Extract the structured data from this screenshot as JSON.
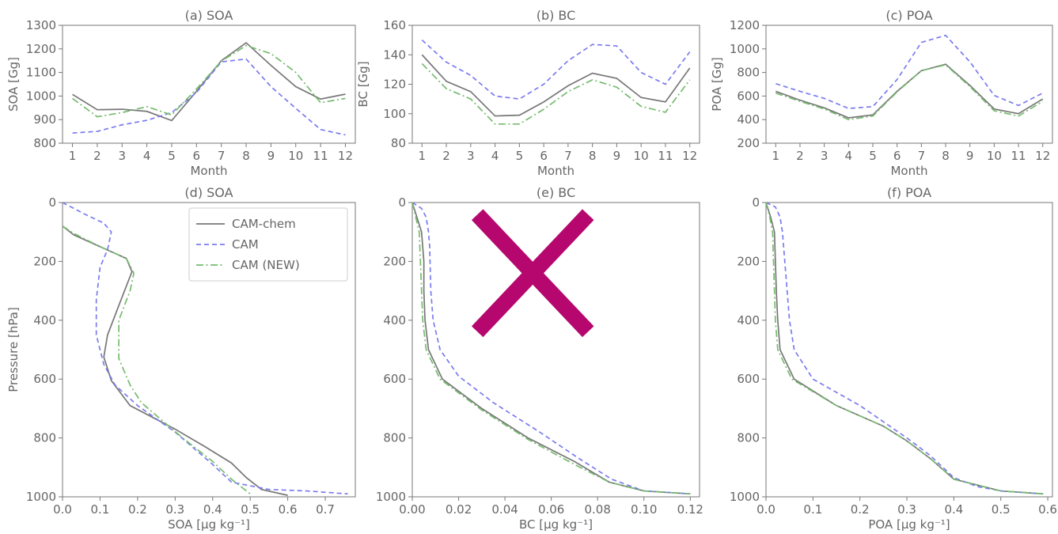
{
  "chart_data": [
    {
      "panel": "a",
      "type": "line",
      "title": "(a) SOA",
      "xlabel": "Month",
      "ylabel": "SOA [Gg]",
      "xlim": [
        0.6,
        12.4
      ],
      "ylim": [
        800,
        1300
      ],
      "xticks": [
        1,
        2,
        3,
        4,
        5,
        6,
        7,
        8,
        9,
        10,
        11,
        12
      ],
      "yticks": [
        800,
        900,
        1000,
        1100,
        1200,
        1300
      ],
      "series": [
        {
          "key": "chem",
          "x": [
            1,
            2,
            3,
            4,
            5,
            6,
            7,
            8,
            9,
            10,
            11,
            12
          ],
          "y": [
            1007,
            942,
            944,
            935,
            896,
            1020,
            1150,
            1226,
            1130,
            1040,
            987,
            1008
          ]
        },
        {
          "key": "cam",
          "x": [
            1,
            2,
            3,
            4,
            5,
            6,
            7,
            8,
            9,
            10,
            11,
            12
          ],
          "y": [
            843,
            850,
            878,
            897,
            930,
            1015,
            1145,
            1157,
            1040,
            948,
            858,
            835
          ]
        },
        {
          "key": "new",
          "x": [
            1,
            2,
            3,
            4,
            5,
            6,
            7,
            8,
            9,
            10,
            11,
            12
          ],
          "y": [
            990,
            912,
            930,
            955,
            920,
            1030,
            1148,
            1214,
            1180,
            1100,
            972,
            990
          ]
        }
      ]
    },
    {
      "panel": "b",
      "type": "line",
      "title": "(b) BC",
      "xlabel": "Month",
      "ylabel": "BC [Gg]",
      "xlim": [
        0.6,
        12.4
      ],
      "ylim": [
        80,
        160
      ],
      "xticks": [
        1,
        2,
        3,
        4,
        5,
        6,
        7,
        8,
        9,
        10,
        11,
        12
      ],
      "yticks": [
        80,
        100,
        120,
        140,
        160
      ],
      "series": [
        {
          "key": "chem",
          "x": [
            1,
            2,
            3,
            4,
            5,
            6,
            7,
            8,
            9,
            10,
            11,
            12
          ],
          "y": [
            140,
            122,
            115,
            98.5,
            99,
            108,
            119,
            127.5,
            124,
            111,
            108,
            131
          ]
        },
        {
          "key": "cam",
          "x": [
            1,
            2,
            3,
            4,
            5,
            6,
            7,
            8,
            9,
            10,
            11,
            12
          ],
          "y": [
            150,
            135,
            126,
            112,
            110,
            120,
            136,
            147,
            146,
            128,
            120,
            142
          ]
        },
        {
          "key": "new",
          "x": [
            1,
            2,
            3,
            4,
            5,
            6,
            7,
            8,
            9,
            10,
            11,
            12
          ],
          "y": [
            134,
            117,
            110,
            93,
            93,
            103,
            115,
            123,
            118,
            105,
            101,
            123
          ]
        }
      ]
    },
    {
      "panel": "c",
      "type": "line",
      "title": "(c) POA",
      "xlabel": "Month",
      "ylabel": "POA [Gg]",
      "xlim": [
        0.6,
        12.4
      ],
      "ylim": [
        200,
        1200
      ],
      "xticks": [
        1,
        2,
        3,
        4,
        5,
        6,
        7,
        8,
        9,
        10,
        11,
        12
      ],
      "yticks": [
        200,
        400,
        600,
        800,
        1000,
        1200
      ],
      "series": [
        {
          "key": "chem",
          "x": [
            1,
            2,
            3,
            4,
            5,
            6,
            7,
            8,
            9,
            10,
            11,
            12
          ],
          "y": [
            640,
            565,
            500,
            415,
            440,
            640,
            815,
            870,
            690,
            490,
            450,
            575
          ]
        },
        {
          "key": "cam",
          "x": [
            1,
            2,
            3,
            4,
            5,
            6,
            7,
            8,
            9,
            10,
            11,
            12
          ],
          "y": [
            705,
            640,
            580,
            495,
            510,
            740,
            1055,
            1115,
            890,
            605,
            520,
            625
          ]
        },
        {
          "key": "new",
          "x": [
            1,
            2,
            3,
            4,
            5,
            6,
            7,
            8,
            9,
            10,
            11,
            12
          ],
          "y": [
            625,
            555,
            490,
            400,
            430,
            635,
            815,
            865,
            680,
            475,
            430,
            555
          ]
        }
      ]
    },
    {
      "panel": "d",
      "type": "line",
      "title": "(d) SOA",
      "xlabel": "SOA [μg kg⁻¹]",
      "ylabel": "Pressure [hPa]",
      "xlim": [
        0.0,
        0.78
      ],
      "ylim": [
        1000,
        0
      ],
      "y_inverted": true,
      "xticks": [
        0.0,
        0.1,
        0.2,
        0.3,
        0.4,
        0.5,
        0.6,
        0.7
      ],
      "xticklabels": [
        "0.0",
        "0.1",
        "0.2",
        "0.3",
        "0.4",
        "0.5",
        "0.6",
        "0.7"
      ],
      "yticks": [
        0,
        200,
        400,
        600,
        800,
        1000
      ],
      "legend": "top-right",
      "series": [
        {
          "key": "chem",
          "x": [
            0.0,
            0.03,
            0.1,
            0.17,
            0.185,
            0.15,
            0.12,
            0.11,
            0.13,
            0.18,
            0.3,
            0.38,
            0.45,
            0.49,
            0.53,
            0.6
          ],
          "y": [
            80,
            110,
            150,
            190,
            235,
            350,
            450,
            525,
            605,
            690,
            770,
            830,
            885,
            935,
            975,
            995
          ]
        },
        {
          "key": "cam",
          "x": [
            0.0,
            0.06,
            0.11,
            0.13,
            0.12,
            0.1,
            0.09,
            0.09,
            0.11,
            0.14,
            0.2,
            0.3,
            0.4,
            0.45,
            0.55,
            0.65,
            0.76
          ],
          "y": [
            0,
            40,
            70,
            100,
            160,
            220,
            330,
            450,
            550,
            620,
            690,
            780,
            890,
            950,
            975,
            980,
            990
          ]
        },
        {
          "key": "new",
          "x": [
            0.0,
            0.03,
            0.1,
            0.17,
            0.19,
            0.18,
            0.15,
            0.15,
            0.18,
            0.21,
            0.32,
            0.4,
            0.45,
            0.5
          ],
          "y": [
            80,
            105,
            150,
            190,
            240,
            300,
            400,
            530,
            620,
            680,
            800,
            880,
            940,
            990
          ]
        }
      ]
    },
    {
      "panel": "e",
      "type": "line",
      "title": "(e) BC",
      "xlabel": "BC [μg kg⁻¹]",
      "ylabel": "",
      "xlim": [
        0.0,
        0.124
      ],
      "ylim": [
        1000,
        0
      ],
      "y_inverted": true,
      "xticks": [
        0.0,
        0.02,
        0.04,
        0.06,
        0.08,
        0.1,
        0.12
      ],
      "xticklabels": [
        "0.00",
        "0.02",
        "0.04",
        "0.06",
        "0.08",
        "0.10",
        "0.12"
      ],
      "yticks": [
        0,
        200,
        400,
        600,
        800,
        1000
      ],
      "annotation": "cross",
      "series": [
        {
          "key": "chem",
          "x": [
            0.0,
            0.002,
            0.004,
            0.0045,
            0.005,
            0.005,
            0.0055,
            0.007,
            0.013,
            0.03,
            0.05,
            0.07,
            0.085,
            0.1,
            0.12
          ],
          "y": [
            0,
            50,
            100,
            150,
            200,
            300,
            400,
            500,
            600,
            700,
            800,
            880,
            950,
            980,
            990
          ]
        },
        {
          "key": "cam",
          "x": [
            0.0,
            0.004,
            0.006,
            0.007,
            0.0075,
            0.008,
            0.009,
            0.012,
            0.02,
            0.035,
            0.055,
            0.072,
            0.086,
            0.1,
            0.12
          ],
          "y": [
            0,
            20,
            50,
            100,
            150,
            300,
            400,
            500,
            590,
            680,
            780,
            870,
            940,
            980,
            990
          ]
        },
        {
          "key": "new",
          "x": [
            0.0,
            0.0015,
            0.003,
            0.0035,
            0.004,
            0.0045,
            0.006,
            0.012,
            0.03,
            0.05,
            0.07,
            0.085,
            0.1,
            0.12
          ],
          "y": [
            0,
            50,
            100,
            200,
            300,
            400,
            500,
            600,
            705,
            805,
            890,
            950,
            980,
            990
          ]
        }
      ]
    },
    {
      "panel": "f",
      "type": "line",
      "title": "(f) POA",
      "xlabel": "POA [μg kg⁻¹]",
      "ylabel": "",
      "xlim": [
        0.0,
        0.61
      ],
      "ylim": [
        1000,
        0
      ],
      "y_inverted": true,
      "xticks": [
        0.0,
        0.1,
        0.2,
        0.3,
        0.4,
        0.5,
        0.6
      ],
      "xticklabels": [
        "0.0",
        "0.1",
        "0.2",
        "0.3",
        "0.4",
        "0.5",
        "0.6"
      ],
      "yticks": [
        0,
        200,
        400,
        600,
        800,
        1000
      ],
      "series": [
        {
          "key": "chem",
          "x": [
            0.0,
            0.01,
            0.018,
            0.02,
            0.022,
            0.025,
            0.03,
            0.06,
            0.15,
            0.25,
            0.3,
            0.35,
            0.4,
            0.5,
            0.59
          ],
          "y": [
            0,
            50,
            100,
            200,
            300,
            400,
            500,
            600,
            690,
            760,
            810,
            870,
            940,
            980,
            990
          ]
        },
        {
          "key": "cam",
          "x": [
            0.0,
            0.02,
            0.03,
            0.035,
            0.04,
            0.045,
            0.05,
            0.06,
            0.1,
            0.2,
            0.3,
            0.35,
            0.4,
            0.45,
            0.5,
            0.59
          ],
          "y": [
            0,
            15,
            50,
            100,
            200,
            300,
            400,
            500,
            600,
            690,
            800,
            860,
            935,
            965,
            980,
            990
          ]
        },
        {
          "key": "new",
          "x": [
            0.0,
            0.008,
            0.014,
            0.016,
            0.018,
            0.02,
            0.025,
            0.055,
            0.15,
            0.25,
            0.3,
            0.35,
            0.4,
            0.5,
            0.59
          ],
          "y": [
            0,
            50,
            100,
            200,
            300,
            400,
            500,
            600,
            690,
            760,
            810,
            870,
            940,
            980,
            990
          ]
        }
      ]
    }
  ],
  "legend": {
    "entries": [
      {
        "key": "chem",
        "label": "CAM-chem",
        "color": "#777777",
        "dash": "solid"
      },
      {
        "key": "cam",
        "label": "CAM",
        "color": "#7b7bef",
        "dash": "dashed"
      },
      {
        "key": "new",
        "label": "CAM (NEW)",
        "color": "#76bb6f",
        "dash": "dashdot"
      }
    ]
  },
  "colors": {
    "axis": "#777777",
    "text": "#666666",
    "cross": "#b5076e"
  }
}
